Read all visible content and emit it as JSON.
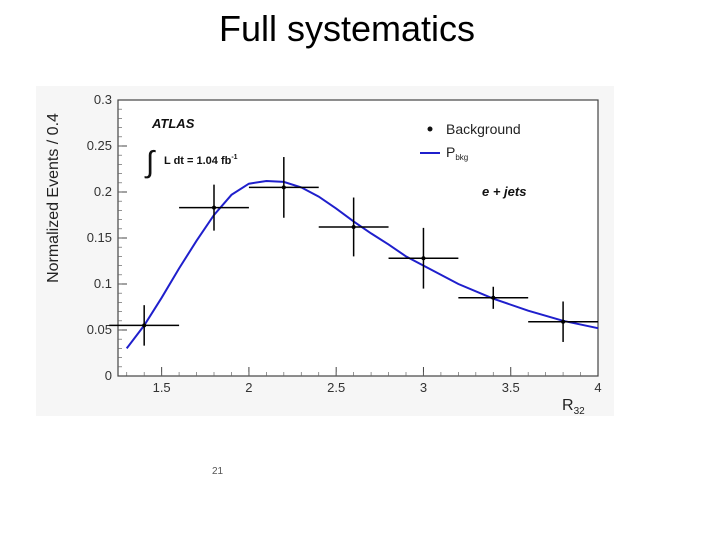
{
  "slide": {
    "title": "Full systematics",
    "page_number": "21"
  },
  "chart_data": {
    "type": "scatter",
    "title": "",
    "xlabel": "R32",
    "ylabel": "Normalized Events / 0.4",
    "xlim": [
      1.25,
      4.0
    ],
    "ylim": [
      0,
      0.3
    ],
    "xticks": [
      1.5,
      2,
      2.5,
      3,
      3.5,
      4
    ],
    "xtick_labels": [
      "1.5",
      "2",
      "2.5",
      "3",
      "3.5",
      "4"
    ],
    "yticks": [
      0,
      0.05,
      0.1,
      0.15,
      0.2,
      0.25,
      0.3
    ],
    "ytick_labels": [
      "0",
      "0.05",
      "0.1",
      "0.15",
      "0.2",
      "0.25",
      "0.3"
    ],
    "grid": false,
    "legend_placement": "top-right",
    "annotations": {
      "experiment": "ATLAS",
      "luminosity": "L dt = 1.04 fb",
      "luminosity_exp": "-1",
      "channel": "e + jets"
    },
    "series": [
      {
        "name": "Background",
        "kind": "points",
        "x": [
          1.4,
          1.8,
          2.2,
          2.6,
          3.0,
          3.4,
          3.8
        ],
        "y": [
          0.055,
          0.183,
          0.205,
          0.162,
          0.128,
          0.085,
          0.059
        ],
        "xerr": [
          0.2,
          0.2,
          0.2,
          0.2,
          0.2,
          0.2,
          0.2
        ],
        "yerr": [
          0.022,
          0.025,
          0.033,
          0.032,
          0.033,
          0.012,
          0.022
        ],
        "color": "#000000"
      },
      {
        "name": "P",
        "name_sub": "bkg",
        "kind": "line",
        "x": [
          1.3,
          1.4,
          1.5,
          1.6,
          1.7,
          1.8,
          1.9,
          2.0,
          2.1,
          2.2,
          2.3,
          2.4,
          2.5,
          2.6,
          2.7,
          2.8,
          2.9,
          3.0,
          3.2,
          3.4,
          3.6,
          3.8,
          4.0
        ],
        "y": [
          0.03,
          0.055,
          0.085,
          0.117,
          0.147,
          0.175,
          0.197,
          0.209,
          0.212,
          0.211,
          0.205,
          0.195,
          0.182,
          0.168,
          0.155,
          0.143,
          0.13,
          0.12,
          0.1,
          0.084,
          0.071,
          0.06,
          0.052
        ],
        "color": "#1f1fcc"
      }
    ]
  }
}
